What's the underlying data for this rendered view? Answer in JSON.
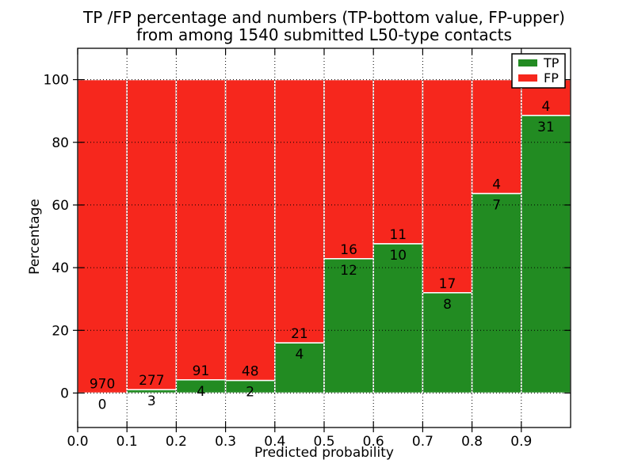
{
  "figure": {
    "title_line1": "TP /FP percentage and numbers (TP-bottom value, FP-upper)",
    "title_line2": "from among 1540 submitted L50-type contacts",
    "background": "#ffffff"
  },
  "chart_data": {
    "type": "bar",
    "stacked": true,
    "normalized_to_percent": 100,
    "title": "TP /FP percentage and numbers (TP-bottom value, FP-upper) from among 1540 submitted L50-type contacts",
    "xlabel": "Predicted probability",
    "ylabel": "Percentage",
    "xlim": [
      0.0,
      1.0
    ],
    "ylim": [
      -11,
      110
    ],
    "xticks": [
      "0.0",
      "0.1",
      "0.2",
      "0.3",
      "0.4",
      "0.5",
      "0.6",
      "0.7",
      "0.8",
      "0.9"
    ],
    "yticks": [
      0,
      20,
      40,
      60,
      80,
      100
    ],
    "grid": {
      "style": "dotted",
      "color": "#000000"
    },
    "bin_edges": [
      0.0,
      0.1,
      0.2,
      0.3,
      0.4,
      0.5,
      0.6,
      0.7,
      0.8,
      0.9,
      1.0
    ],
    "series": [
      {
        "name": "TP",
        "color": "#228b22",
        "counts": [
          0,
          3,
          4,
          2,
          4,
          12,
          10,
          8,
          7,
          31
        ]
      },
      {
        "name": "FP",
        "color": "#f6271d",
        "counts": [
          970,
          277,
          91,
          48,
          21,
          16,
          11,
          17,
          4,
          4
        ]
      }
    ],
    "tp_percent_heights": [
      0.0,
      1.1,
      4.2,
      4.0,
      16.0,
      42.9,
      47.6,
      32.0,
      63.6,
      88.6
    ],
    "total_contacts": 1540,
    "bar_edge_color": "#ffffff",
    "text_color": "#000000",
    "legend": {
      "position": "upper right",
      "entries": [
        {
          "label": "TP",
          "color": "#228b22"
        },
        {
          "label": "FP",
          "color": "#f6271d"
        }
      ]
    }
  }
}
